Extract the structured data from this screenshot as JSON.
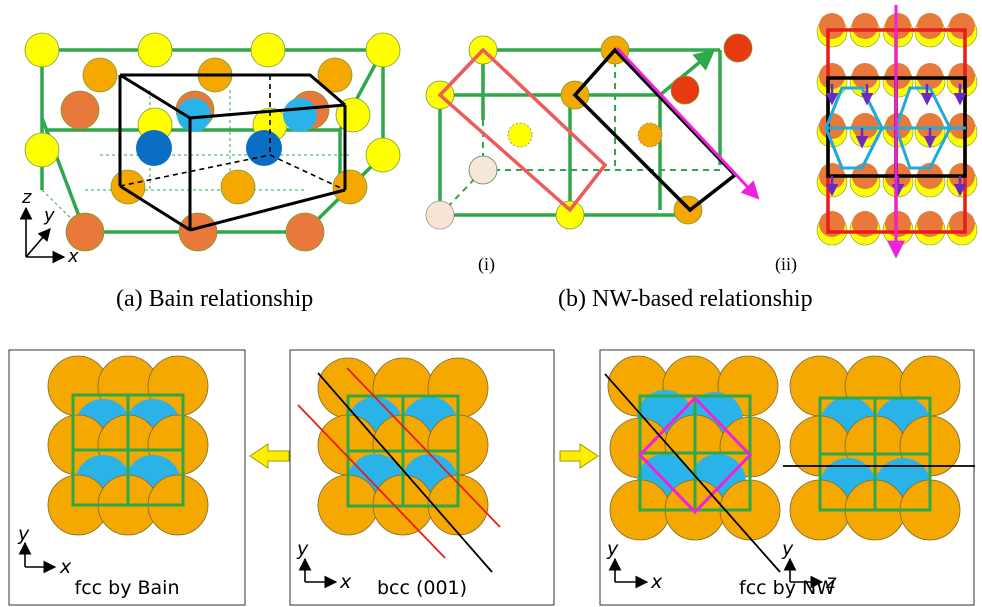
{
  "captions": {
    "a": "(a) Bain relationship",
    "b": "(b) NW-based relationship",
    "sub_i": "(i)",
    "sub_ii": "(ii)"
  },
  "axes": {
    "x": "x",
    "y": "y",
    "z": "z"
  },
  "panels": {
    "left": "fcc by Bain",
    "middle": "bcc (001)",
    "right": "fcc by NW"
  },
  "colors": {
    "orange_atom": "#f5a800",
    "dark_orange_atom": "#e8793a",
    "yellow_atom": "#ffff00",
    "blue_atom": "#0a6fc2",
    "light_blue_atom": "#2ab3e8",
    "red_atom": "#e83a10",
    "green_lattice": "#2ea84a",
    "magenta_arrow": "#ee22dd",
    "salmon_rect": "#f05a5a",
    "red_line": "#e81c1c",
    "cyan_hex": "#22aadd",
    "purple_arrow": "#6a2bc4",
    "transform_arrow": "#ffee00"
  }
}
